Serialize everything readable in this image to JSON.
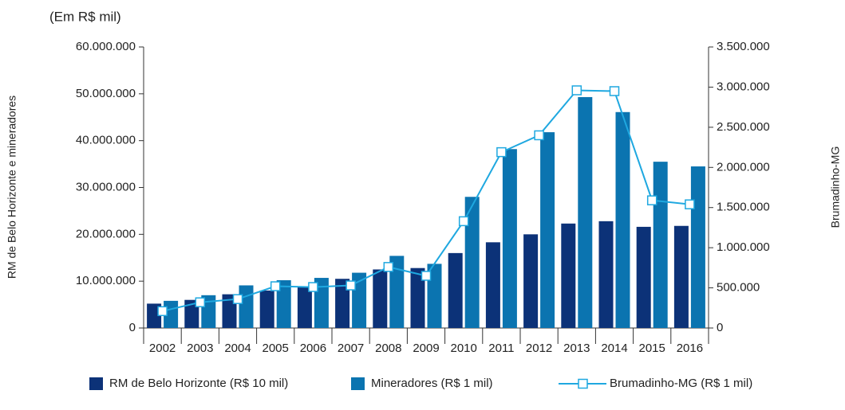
{
  "chart_data": {
    "type": "bar",
    "subtitle": "(Em R$ mil)",
    "y_label": "RM de Belo Horizonte e mineradores",
    "y2_label": "Brumadinho-MG",
    "categories": [
      "2002",
      "2003",
      "2004",
      "2005",
      "2006",
      "2007",
      "2008",
      "2009",
      "2010",
      "2011",
      "2012",
      "2013",
      "2014",
      "2015",
      "2016"
    ],
    "series": [
      {
        "name": "RM de Belo Horizonte (R$ 10 mil)",
        "type": "bar",
        "color": "#0c3278",
        "values": [
          5200000,
          6000000,
          7200000,
          8000000,
          8900000,
          10500000,
          12500000,
          12800000,
          16000000,
          18300000,
          20000000,
          22300000,
          22800000,
          21600000,
          21800000
        ]
      },
      {
        "name": "Mineradores (R$ 1 mil)",
        "type": "bar",
        "color": "#0b74b0",
        "values": [
          5800000,
          7000000,
          9100000,
          10200000,
          10700000,
          11800000,
          15400000,
          13700000,
          28000000,
          38200000,
          41800000,
          49300000,
          46100000,
          35500000,
          34500000
        ]
      },
      {
        "name": "Brumadinho-MG (R$ 1 mil)",
        "type": "line",
        "axis": "y2",
        "color": "#1fa8e0",
        "values": [
          210000,
          320000,
          360000,
          520000,
          510000,
          530000,
          760000,
          650000,
          1330000,
          2190000,
          2400000,
          2960000,
          2950000,
          1590000,
          1540000
        ]
      }
    ],
    "ylim": [
      0,
      60000000
    ],
    "yticks": [
      0,
      {
        "value": 10000000,
        "label": "10.000.000"
      },
      {
        "value": 20000000,
        "label": "20.000.000"
      },
      {
        "value": 30000000,
        "label": "30.000.000"
      },
      {
        "value": 40000000,
        "label": "40.000.000"
      },
      {
        "value": 50000000,
        "label": "50.000.000"
      },
      {
        "value": 60000000,
        "label": "60.000.000"
      }
    ],
    "y2lim": [
      0,
      3500000
    ],
    "y2ticks": [
      0,
      {
        "value": 500000,
        "label": "500.000"
      },
      {
        "value": 1000000,
        "label": "1.000.000"
      },
      {
        "value": 1500000,
        "label": "1.500.000"
      },
      {
        "value": 2000000,
        "label": "2.000.000"
      },
      {
        "value": 2500000,
        "label": "2.500.000"
      },
      {
        "value": 3000000,
        "label": "3.000.000"
      },
      {
        "value": 3500000,
        "label": "3.500.000"
      }
    ],
    "grid": false
  }
}
